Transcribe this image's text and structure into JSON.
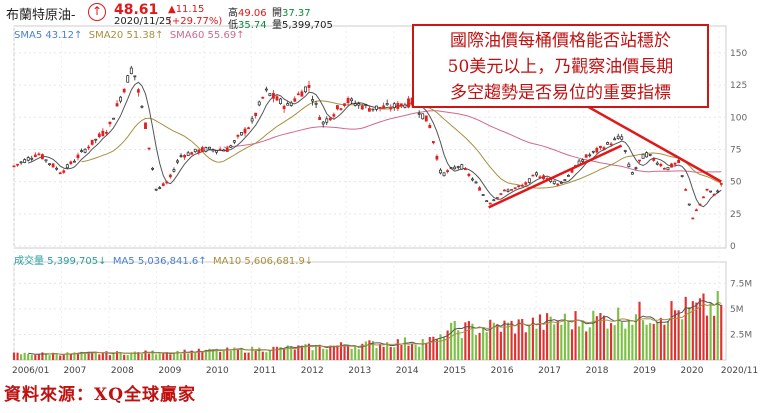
{
  "quote": {
    "name": "布蘭特原油-",
    "date": "2020/11/25",
    "price": "48.61",
    "change": "▲11.15",
    "change_pct": "(+29.77%)",
    "high_label": "高",
    "high": "49.06",
    "low_label": "低",
    "low": "35.74",
    "open_label": "開",
    "open": "37.37",
    "vol_label": "量",
    "vol": "5,399,705"
  },
  "legend": {
    "sma5": "SMA5 43.12↑",
    "sma20": "SMA20 51.38↑",
    "sma60": "SMA60 55.69↑",
    "vol_title": "成交量 5,399,705↓",
    "ma5": "MA5 5,036,841.6↑",
    "ma10": "MA10 5,606,681.9↓"
  },
  "annotation": {
    "line1": "國際油價每桶價格能否站穩於",
    "line2": "50美元以上，乃觀察油價長期",
    "line3": "多空趨勢是否易位的重要指標"
  },
  "source": "資料來源：XQ全球贏家",
  "colors": {
    "up": "#e02020",
    "down": "#222222",
    "sma5": "#555555",
    "sma20": "#a89040",
    "sma60": "#d06a8a",
    "vol_up": "#e03030",
    "vol_down": "#7bc043",
    "trend": "#e01818",
    "note_border": "#d01515"
  },
  "chart_data": {
    "type": "candlestick",
    "title": "布蘭特原油",
    "x_ticks": [
      "2006/01",
      "2007",
      "2008",
      "2009",
      "2010",
      "2011",
      "2012",
      "2013",
      "2014",
      "2015",
      "2016",
      "2017",
      "2018",
      "2019",
      "2020",
      "2020/11"
    ],
    "price_axis": {
      "ticks": [
        "150",
        "125",
        "100",
        "75",
        "50",
        "25",
        "0"
      ],
      "ylim": [
        0,
        160
      ]
    },
    "volume_axis": {
      "ticks": [
        "7.5M",
        "5M",
        "2.5M"
      ],
      "ylim": [
        0,
        9000000
      ]
    },
    "price_monthly": [
      [
        2006.0,
        62
      ],
      [
        2006.5,
        72
      ],
      [
        2007.0,
        57
      ],
      [
        2007.5,
        75
      ],
      [
        2008.0,
        92
      ],
      [
        2008.5,
        140
      ],
      [
        2008.75,
        98
      ],
      [
        2009.0,
        43
      ],
      [
        2009.25,
        50
      ],
      [
        2009.5,
        70
      ],
      [
        2010.0,
        75
      ],
      [
        2010.5,
        75
      ],
      [
        2011.0,
        95
      ],
      [
        2011.3,
        120
      ],
      [
        2011.75,
        108
      ],
      [
        2012.2,
        125
      ],
      [
        2012.5,
        95
      ],
      [
        2013.0,
        113
      ],
      [
        2013.5,
        107
      ],
      [
        2014.0,
        108
      ],
      [
        2014.4,
        112
      ],
      [
        2014.75,
        95
      ],
      [
        2015.0,
        55
      ],
      [
        2015.4,
        63
      ],
      [
        2015.75,
        48
      ],
      [
        2016.0,
        33
      ],
      [
        2016.3,
        42
      ],
      [
        2016.75,
        47
      ],
      [
        2017.0,
        56
      ],
      [
        2017.5,
        48
      ],
      [
        2018.0,
        68
      ],
      [
        2018.8,
        85
      ],
      [
        2019.0,
        55
      ],
      [
        2019.3,
        72
      ],
      [
        2019.75,
        60
      ],
      [
        2020.0,
        65
      ],
      [
        2020.3,
        22
      ],
      [
        2020.6,
        43
      ],
      [
        2020.8,
        40
      ],
      [
        2020.9,
        48.61
      ]
    ],
    "sma_last": {
      "SMA5": 43.12,
      "SMA20": 51.38,
      "SMA60": 55.69
    },
    "volume_last": {
      "volume": 5399705,
      "MA5": 5036841.6,
      "MA10": 5606681.9
    },
    "trend_lines": [
      {
        "from": [
          2016.0,
          30
        ],
        "to": [
          2018.8,
          78
        ]
      },
      {
        "from": [
          2018.1,
          108
        ],
        "to": [
          2020.9,
          50
        ]
      }
    ]
  }
}
